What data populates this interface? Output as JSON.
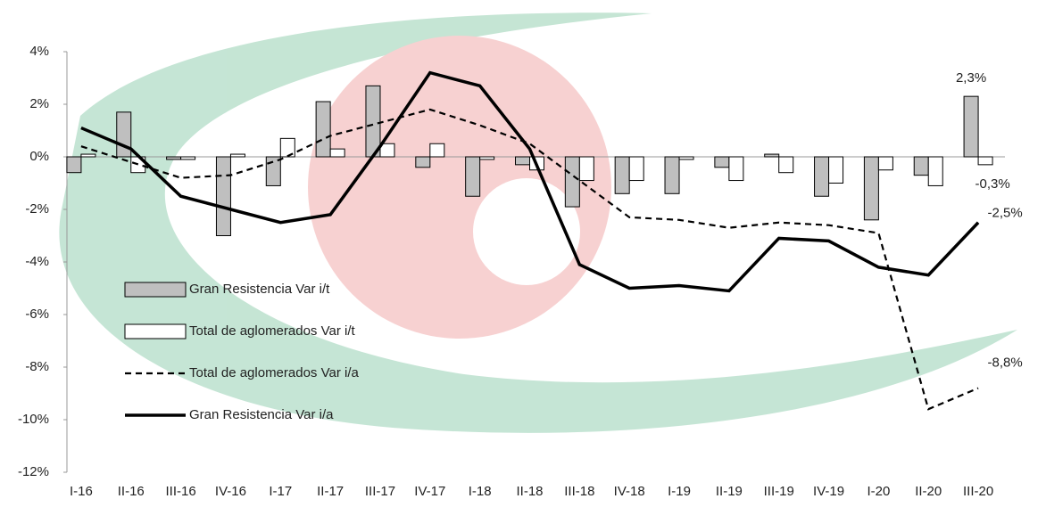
{
  "chart_data": {
    "type": "combo",
    "categories": [
      "I-16",
      "II-16",
      "III-16",
      "IV-16",
      "I-17",
      "II-17",
      "III-17",
      "IV-17",
      "I-18",
      "II-18",
      "III-18",
      "IV-18",
      "I-19",
      "II-19",
      "III-19",
      "IV-19",
      "I-20",
      "II-20",
      "III-20"
    ],
    "series": [
      {
        "name": "Gran Resistencia Var i/t",
        "type": "bar",
        "color": "#bfbfbf",
        "values": [
          -0.6,
          1.7,
          -0.1,
          -3.0,
          -1.1,
          2.1,
          2.7,
          -0.4,
          -1.5,
          -0.3,
          -1.9,
          -1.4,
          -1.4,
          -0.4,
          0.1,
          -1.5,
          -2.4,
          -0.7,
          2.3
        ],
        "value_labels": [
          null,
          null,
          null,
          null,
          null,
          null,
          null,
          null,
          null,
          null,
          null,
          null,
          null,
          null,
          null,
          null,
          null,
          null,
          "2,3%"
        ]
      },
      {
        "name": "Total de aglomerados Var i/t",
        "type": "bar",
        "color": "#ffffff",
        "values": [
          0.1,
          -0.6,
          -0.1,
          0.1,
          0.7,
          0.3,
          0.5,
          0.5,
          -0.1,
          -0.5,
          -0.9,
          -0.9,
          -0.1,
          -0.9,
          -0.6,
          -1.0,
          -0.5,
          -1.1,
          -0.3
        ],
        "value_labels": [
          null,
          null,
          null,
          null,
          null,
          null,
          null,
          null,
          null,
          null,
          null,
          null,
          null,
          null,
          null,
          null,
          null,
          null,
          "-0,3%"
        ]
      },
      {
        "name": "Total de aglomerados Var i/a",
        "type": "line",
        "dashed": true,
        "color": "#000000",
        "values": [
          0.4,
          -0.2,
          -0.8,
          -0.7,
          -0.1,
          0.8,
          1.3,
          1.8,
          1.2,
          0.5,
          -0.9,
          -2.3,
          -2.4,
          -2.7,
          -2.5,
          -2.6,
          -2.9,
          -9.6,
          -8.8
        ],
        "value_labels": [
          null,
          null,
          null,
          null,
          null,
          null,
          null,
          null,
          null,
          null,
          null,
          null,
          null,
          null,
          null,
          null,
          null,
          null,
          "-8,8%"
        ]
      },
      {
        "name": "Gran Resistencia Var i/a",
        "type": "line",
        "dashed": false,
        "color": "#000000",
        "values": [
          1.1,
          0.3,
          -1.5,
          -2.0,
          -2.5,
          -2.2,
          0.4,
          3.2,
          2.7,
          0.3,
          -4.1,
          -5.0,
          -4.9,
          -5.1,
          -3.1,
          -3.2,
          -4.2,
          -4.5,
          -2.5
        ],
        "value_labels": [
          null,
          null,
          null,
          null,
          null,
          null,
          null,
          null,
          null,
          null,
          null,
          null,
          null,
          null,
          null,
          null,
          null,
          null,
          "-2,5%"
        ]
      }
    ],
    "ylim": [
      -12,
      4
    ],
    "yticks": [
      {
        "value": -12,
        "label": "-12%"
      },
      {
        "value": -10,
        "label": "-10%"
      },
      {
        "value": -8,
        "label": "-8%"
      },
      {
        "value": -6,
        "label": "-6%"
      },
      {
        "value": -4,
        "label": "-4%"
      },
      {
        "value": -2,
        "label": "-2%"
      },
      {
        "value": 0,
        "label": "0%"
      },
      {
        "value": 2,
        "label": "2%"
      },
      {
        "value": 4,
        "label": "4%"
      }
    ],
    "legend": "left"
  }
}
